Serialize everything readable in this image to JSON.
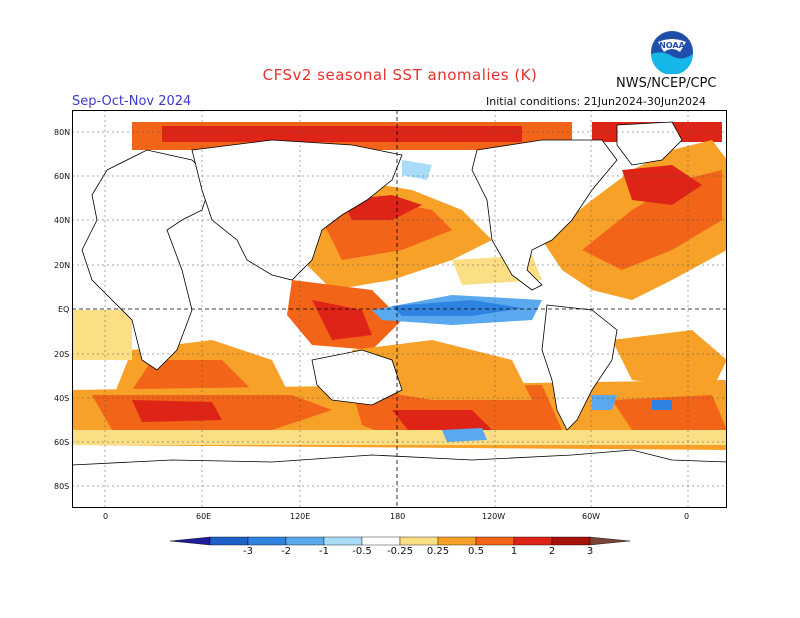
{
  "header": {
    "title": "CFSv2 seasonal SST anomalies (K)",
    "season": "Sep-Oct-Nov 2024",
    "initial_conditions": "Initial conditions: 21Jun2024-30Jun2024",
    "agency": "NWS/NCEP/CPC",
    "logo_text": "NOAA"
  },
  "axes": {
    "lat_labels": [
      "80N",
      "60N",
      "40N",
      "20N",
      "EQ",
      "20S",
      "40S",
      "60S",
      "80S"
    ],
    "lon_labels": [
      "0",
      "60E",
      "120E",
      "180",
      "120W",
      "60W",
      "0"
    ]
  },
  "colorbar": {
    "labels": [
      "-3",
      "-2",
      "-1",
      "-0.5",
      "-0.25",
      "0.25",
      "0.5",
      "1",
      "2",
      "3"
    ],
    "colors": [
      "#1e1e9a",
      "#1f5fc8",
      "#2f82e0",
      "#5aa8ee",
      "#a8dcf8",
      "#ffffff",
      "#fcdf84",
      "#f8a128",
      "#f26418",
      "#de2416",
      "#a8100a",
      "#7a4436"
    ]
  },
  "colors": {
    "title_red": "#e8302c",
    "season_blue": "#3a3acc",
    "ocean_white": "#ffffff",
    "land_outline": "#000000"
  }
}
